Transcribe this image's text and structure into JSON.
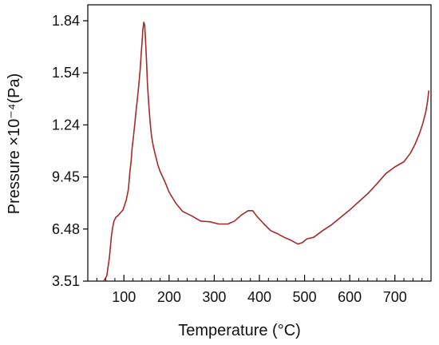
{
  "chart_data": {
    "type": "line",
    "title": "",
    "xlabel": "Temperature (°C)",
    "ylabel": "Pressure ×10⁻⁴(Pa)",
    "xlim": [
      20,
      780
    ],
    "ylim": [
      3.51,
      1.84
    ],
    "x_ticks": [
      100,
      200,
      300,
      400,
      500,
      600,
      700
    ],
    "y_ticks": [
      "3.51",
      "6.48",
      "9.45",
      "1.24",
      "1.54",
      "1.84"
    ],
    "y_tick_values": [
      3.51,
      6.48,
      9.45,
      1.24,
      1.54,
      1.84
    ],
    "grid": false,
    "line_color": "#a52a2a",
    "series": [
      {
        "x": [
          55,
          62,
          68,
          72,
          75,
          78,
          82,
          88,
          92,
          98,
          105,
          110,
          113,
          116,
          118,
          121,
          124,
          127,
          130,
          133,
          136,
          138,
          140,
          142,
          144,
          146,
          148,
          150,
          152,
          155,
          158,
          161,
          165,
          170,
          175,
          180,
          190,
          200,
          215,
          230,
          250,
          270,
          290,
          310,
          330,
          345,
          360,
          375,
          385,
          395,
          410,
          425,
          440,
          455,
          470,
          485,
          495,
          505,
          520,
          540,
          560,
          580,
          600,
          620,
          640,
          660,
          680,
          700,
          720,
          735,
          745,
          755,
          762,
          768,
          772,
          775
        ],
        "y": [
          3.51,
          3.44,
          3.18,
          2.92,
          2.79,
          2.7,
          2.65,
          2.62,
          2.59,
          2.55,
          2.42,
          2.27,
          2.05,
          1.89,
          1.73,
          1.57,
          1.4,
          1.21,
          1.05,
          0.86,
          0.66,
          0.46,
          0.3,
          0.12,
          0.02,
          0.06,
          0.28,
          0.55,
          0.84,
          1.13,
          1.37,
          1.55,
          1.69,
          1.82,
          1.94,
          2.03,
          2.16,
          2.31,
          2.46,
          2.57,
          2.63,
          2.7,
          2.71,
          2.74,
          2.74,
          2.7,
          2.62,
          2.56,
          2.56,
          2.64,
          2.74,
          2.83,
          2.87,
          2.92,
          2.96,
          3.01,
          2.99,
          2.94,
          2.92,
          2.83,
          2.75,
          2.65,
          2.55,
          2.44,
          2.33,
          2.2,
          2.06,
          1.97,
          1.9,
          1.78,
          1.66,
          1.51,
          1.38,
          1.24,
          1.1,
          0.94
        ]
      }
    ]
  }
}
